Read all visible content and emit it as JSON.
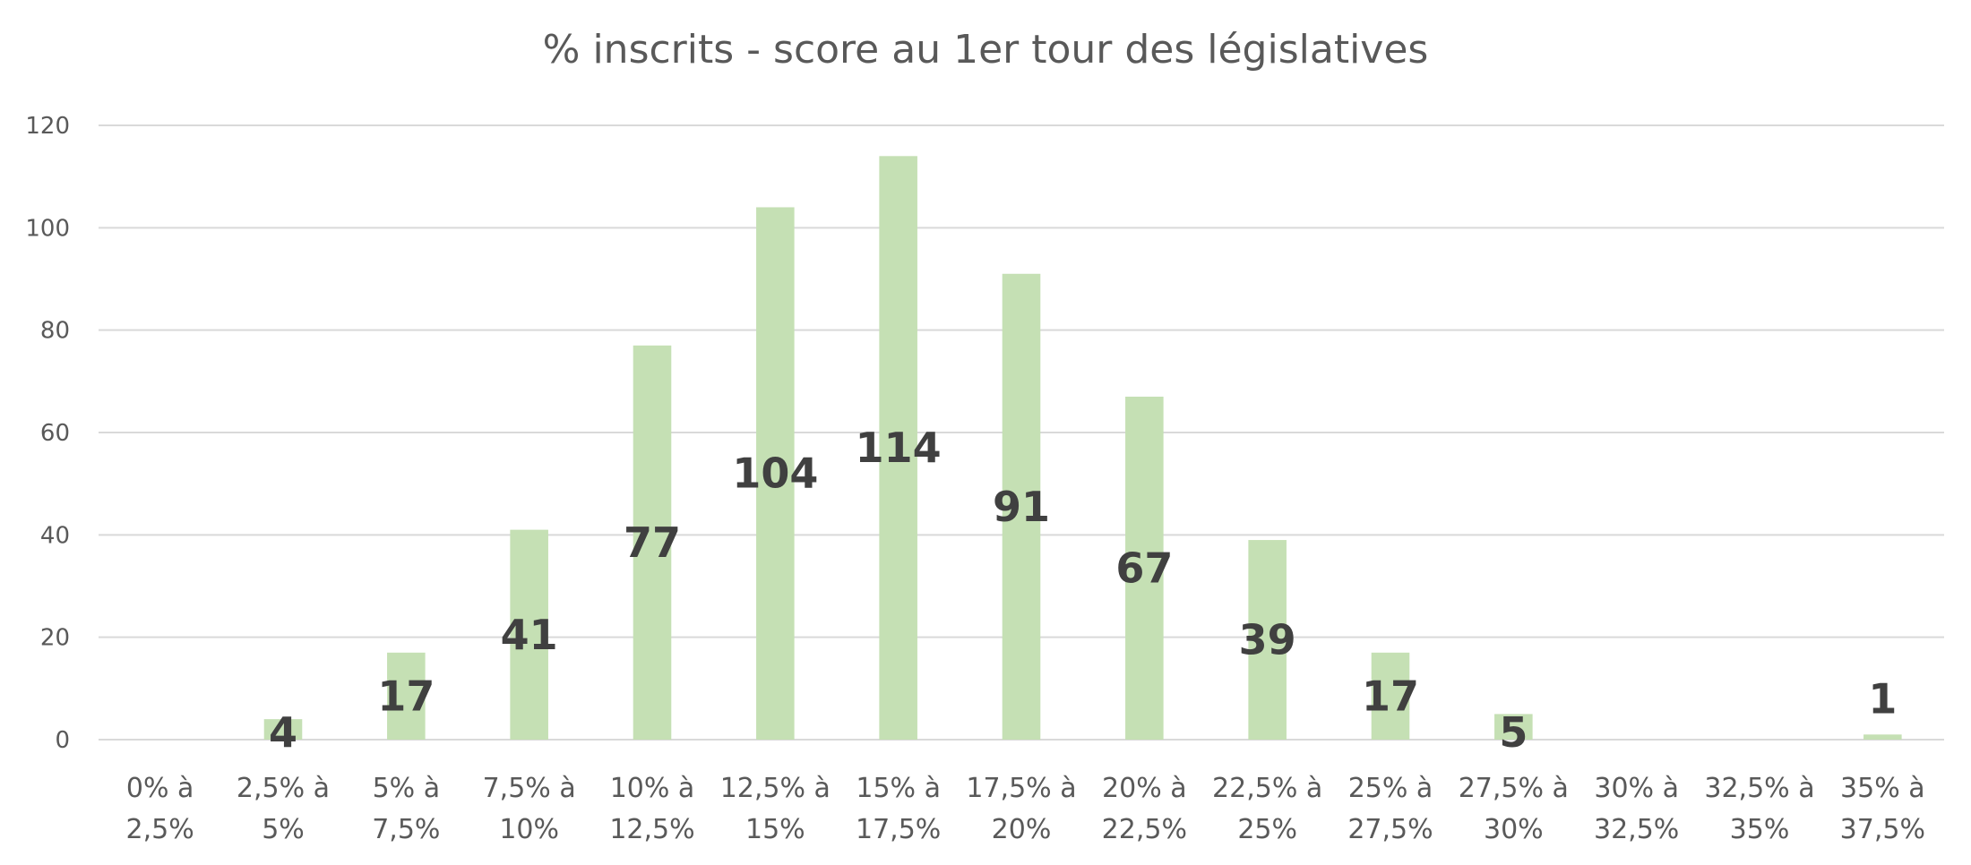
{
  "chart_data": {
    "type": "bar",
    "title": "% inscrits - score au 1er tour des législatives",
    "xlabel": "",
    "ylabel": "",
    "categories": [
      [
        "0% à",
        "2,5%"
      ],
      [
        "2,5% à",
        "5%"
      ],
      [
        "5% à",
        "7,5%"
      ],
      [
        "7,5% à",
        "10%"
      ],
      [
        "10% à",
        "12,5%"
      ],
      [
        "12,5% à",
        "15%"
      ],
      [
        "15% à",
        "17,5%"
      ],
      [
        "17,5% à",
        "20%"
      ],
      [
        "20% à",
        "22,5%"
      ],
      [
        "22,5% à",
        "25%"
      ],
      [
        "25% à",
        "27,5%"
      ],
      [
        "27,5% à",
        "30%"
      ],
      [
        "30% à",
        "32,5%"
      ],
      [
        "32,5% à",
        "35%"
      ],
      [
        "35% à",
        "37,5%"
      ]
    ],
    "values": [
      0,
      4,
      17,
      41,
      77,
      104,
      114,
      91,
      67,
      39,
      17,
      5,
      0,
      0,
      1
    ],
    "data_labels": [
      "",
      "4",
      "17",
      "41",
      "77",
      "104",
      "114",
      "91",
      "67",
      "39",
      "17",
      "5",
      "",
      "",
      "1"
    ],
    "ylim": [
      0,
      120
    ],
    "yticks": [
      0,
      20,
      40,
      60,
      80,
      100,
      120
    ],
    "grid": true,
    "legend": "none",
    "colors": {
      "bar": "#c5e0b4",
      "grid": "#d9d9d9",
      "text": "#595959",
      "label": "#404040"
    }
  }
}
